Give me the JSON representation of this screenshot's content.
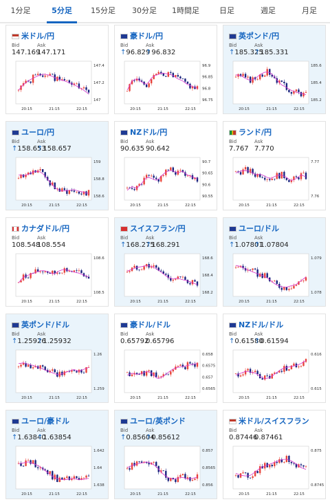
{
  "tabs": [
    {
      "label": "1分足",
      "active": false
    },
    {
      "label": "5分足",
      "active": true
    },
    {
      "label": "15分足",
      "active": false
    },
    {
      "label": "30分足",
      "active": false
    },
    {
      "label": "1時間足",
      "active": false
    },
    {
      "label": "日足",
      "active": false
    },
    {
      "label": "週足",
      "active": false
    },
    {
      "label": "月足",
      "active": false
    }
  ],
  "labels": {
    "bid": "Bid",
    "ask": "Ask"
  },
  "colors": {
    "up": "#e8443a",
    "down": "#1a237e",
    "ma1": "#d633cc",
    "ma2": "#ff88aa",
    "link": "#1565c0",
    "shaded": "#eaf4fb"
  },
  "cards": [
    {
      "name": "米ドル/円",
      "flag": "us",
      "bid": "147.169",
      "ask": "147.171",
      "arrow": "",
      "yticks": [
        "147.4",
        "147.2",
        "147"
      ],
      "xticks": [
        "20:15",
        "21:15",
        "22:15"
      ],
      "shaded": false
    },
    {
      "name": "豪ドル/円",
      "flag": "au",
      "bid": "96.829",
      "ask": "96.832",
      "arrow": "↑",
      "yticks": [
        "96.9",
        "96.85",
        "96.8",
        "96.75"
      ],
      "xticks": [
        "20:15",
        "21:15",
        "22:15"
      ],
      "shaded": false
    },
    {
      "name": "英ポンド/円",
      "flag": "gb",
      "bid": "185.325",
      "ask": "185.331",
      "arrow": "↑",
      "yticks": [
        "185.6",
        "185.4",
        "185.2"
      ],
      "xticks": [
        "20:15",
        "21:15",
        "22:15"
      ],
      "shaded": true
    },
    {
      "name": "ユーロ/円",
      "flag": "eu",
      "bid": "158.653",
      "ask": "158.657",
      "arrow": "↑",
      "yticks": [
        "159",
        "158.8",
        "158.6"
      ],
      "xticks": [
        "20:15",
        "21:15",
        "22:15"
      ],
      "shaded": true
    },
    {
      "name": "NZドル/円",
      "flag": "nz",
      "bid": "90.635",
      "ask": "90.642",
      "arrow": "",
      "yticks": [
        "90.7",
        "90.65",
        "90.6",
        "90.55"
      ],
      "xticks": [
        "20:15",
        "21:15",
        "22:15"
      ],
      "shaded": false
    },
    {
      "name": "ランド/円",
      "flag": "za",
      "bid": "7.767",
      "ask": "7.770",
      "arrow": "",
      "yticks": [
        "7.77",
        "7.76"
      ],
      "xticks": [
        "20:15",
        "21:15",
        "22:15"
      ],
      "shaded": false
    },
    {
      "name": "カナダドル/円",
      "flag": "ca",
      "bid": "108.548",
      "ask": "108.554",
      "arrow": "",
      "yticks": [
        "108.6",
        "108.5"
      ],
      "xticks": [
        "20:15",
        "21:15",
        "22:15"
      ],
      "shaded": false
    },
    {
      "name": "スイスフラン/円",
      "flag": "ch",
      "bid": "168.275",
      "ask": "168.291",
      "arrow": "↑",
      "yticks": [
        "168.6",
        "168.4",
        "168.2"
      ],
      "xticks": [
        "20:15",
        "21:15",
        "22:15"
      ],
      "shaded": true
    },
    {
      "name": "ユーロ/ドル",
      "flag": "eu",
      "bid": "1.07801",
      "ask": "1.07804",
      "arrow": "↑",
      "yticks": [
        "1.079",
        "1.078"
      ],
      "xticks": [
        "20:15",
        "21:15",
        "22:15"
      ],
      "shaded": true
    },
    {
      "name": "英ポンド/ドル",
      "flag": "gb",
      "bid": "1.25926",
      "ask": "1.25932",
      "arrow": "↑",
      "yticks": [
        "1.26",
        "1.259"
      ],
      "xticks": [
        "20:15",
        "21:15",
        "22:15"
      ],
      "shaded": true
    },
    {
      "name": "豪ドル/ドル",
      "flag": "au",
      "bid": "0.65792",
      "ask": "0.65796",
      "arrow": "",
      "yticks": [
        "0.658",
        "0.6575",
        "0.657",
        "0.6565"
      ],
      "xticks": [
        "20:15",
        "21:15",
        "22:15"
      ],
      "shaded": false
    },
    {
      "name": "NZドル/ドル",
      "flag": "nz",
      "bid": "0.61580",
      "ask": "0.61594",
      "arrow": "↑",
      "yticks": [
        "0.616",
        "0.615"
      ],
      "xticks": [
        "20:15",
        "21:15",
        "22:15"
      ],
      "shaded": false
    },
    {
      "name": "ユーロ/豪ドル",
      "flag": "eu",
      "bid": "1.63840",
      "ask": "1.63854",
      "arrow": "↑",
      "yticks": [
        "1.642",
        "1.64",
        "1.638"
      ],
      "xticks": [
        "20:15",
        "21:15",
        "22:15"
      ],
      "shaded": true
    },
    {
      "name": "ユーロ/英ポンド",
      "flag": "eu",
      "bid": "0.85604",
      "ask": "0.85612",
      "arrow": "↑",
      "yticks": [
        "0.857",
        "0.8565",
        "0.856"
      ],
      "xticks": [
        "20:15",
        "21:15",
        "22:15"
      ],
      "shaded": true
    },
    {
      "name": "米ドル/スイスフラン",
      "flag": "us",
      "bid": "0.87446",
      "ask": "0.87461",
      "arrow": "",
      "yticks": [
        "0.875",
        "0.8745"
      ],
      "xticks": [
        "20:15",
        "21:15",
        "22:15"
      ],
      "shaded": false
    }
  ],
  "chart_data": [
    {
      "type": "candlestick",
      "pair": "米ドル/円",
      "trend": [
        0.3,
        0.45,
        0.55,
        0.62,
        0.68,
        0.72,
        0.7,
        0.64,
        0.58,
        0.55,
        0.5,
        0.45,
        0.38,
        0.3,
        0.2
      ],
      "ylim": [
        147.0,
        147.4
      ]
    },
    {
      "type": "candlestick",
      "pair": "豪ドル/円",
      "trend": [
        0.3,
        0.55,
        0.6,
        0.5,
        0.45,
        0.65,
        0.7,
        0.75,
        0.72,
        0.7,
        0.6,
        0.55,
        0.45,
        0.4,
        0.35
      ],
      "ylim": [
        96.75,
        96.9
      ]
    },
    {
      "type": "candlestick",
      "pair": "英ポンド/円",
      "trend": [
        0.7,
        0.68,
        0.6,
        0.55,
        0.62,
        0.72,
        0.78,
        0.75,
        0.6,
        0.45,
        0.38,
        0.3,
        0.25,
        0.22,
        0.18
      ],
      "ylim": [
        185.2,
        185.6
      ]
    },
    {
      "type": "candlestick",
      "pair": "ユーロ/円",
      "trend": [
        0.6,
        0.58,
        0.62,
        0.68,
        0.7,
        0.62,
        0.45,
        0.3,
        0.2,
        0.18,
        0.2,
        0.22,
        0.18,
        0.15,
        0.12
      ],
      "ylim": [
        158.6,
        159.0
      ]
    },
    {
      "type": "candlestick",
      "pair": "NZドル/円",
      "trend": [
        0.2,
        0.3,
        0.25,
        0.4,
        0.55,
        0.5,
        0.45,
        0.6,
        0.7,
        0.72,
        0.65,
        0.7,
        0.6,
        0.55,
        0.5
      ],
      "ylim": [
        90.55,
        90.7
      ]
    },
    {
      "type": "candlestick",
      "pair": "ランド/円",
      "trend": [
        0.65,
        0.7,
        0.72,
        0.68,
        0.6,
        0.62,
        0.55,
        0.5,
        0.58,
        0.6,
        0.55,
        0.45,
        0.5,
        0.6,
        0.55
      ],
      "ylim": [
        7.755,
        7.775
      ]
    },
    {
      "type": "candlestick",
      "pair": "カナダドル/円",
      "trend": [
        0.3,
        0.45,
        0.5,
        0.55,
        0.6,
        0.62,
        0.58,
        0.52,
        0.6,
        0.65,
        0.62,
        0.58,
        0.55,
        0.5,
        0.45
      ],
      "ylim": [
        108.45,
        108.62
      ]
    },
    {
      "type": "candlestick",
      "pair": "スイスフラン/円",
      "trend": [
        0.6,
        0.65,
        0.7,
        0.72,
        0.75,
        0.72,
        0.65,
        0.55,
        0.45,
        0.4,
        0.42,
        0.38,
        0.35,
        0.3,
        0.25
      ],
      "ylim": [
        168.15,
        168.65
      ]
    },
    {
      "type": "candlestick",
      "pair": "ユーロ/ドル",
      "trend": [
        0.75,
        0.72,
        0.65,
        0.6,
        0.55,
        0.5,
        0.45,
        0.35,
        0.25,
        0.2,
        0.18,
        0.22,
        0.25,
        0.35,
        0.45
      ],
      "ylim": [
        1.0772,
        1.0795
      ]
    },
    {
      "type": "candlestick",
      "pair": "英ポンド/ドル",
      "trend": [
        0.7,
        0.72,
        0.68,
        0.65,
        0.6,
        0.55,
        0.5,
        0.45,
        0.4,
        0.45,
        0.5,
        0.55,
        0.5,
        0.55,
        0.6
      ],
      "ylim": [
        1.2585,
        1.2605
      ]
    },
    {
      "type": "candlestick",
      "pair": "豪ドル/ドル",
      "trend": [
        0.4,
        0.45,
        0.42,
        0.45,
        0.5,
        0.45,
        0.3,
        0.35,
        0.45,
        0.55,
        0.6,
        0.62,
        0.65,
        0.68,
        0.7
      ],
      "ylim": [
        0.6562,
        0.6583
      ]
    },
    {
      "type": "candlestick",
      "pair": "NZドル/ドル",
      "trend": [
        0.4,
        0.45,
        0.5,
        0.48,
        0.45,
        0.35,
        0.3,
        0.35,
        0.45,
        0.55,
        0.6,
        0.62,
        0.65,
        0.7,
        0.78
      ],
      "ylim": [
        0.6143,
        0.6163
      ]
    },
    {
      "type": "candlestick",
      "pair": "ユーロ/豪ドル",
      "trend": [
        0.6,
        0.62,
        0.65,
        0.6,
        0.55,
        0.45,
        0.35,
        0.25,
        0.2,
        0.18,
        0.2,
        0.22,
        0.18,
        0.2,
        0.22
      ],
      "ylim": [
        1.6375,
        1.6425
      ]
    },
    {
      "type": "candlestick",
      "pair": "ユーロ/英ポンド",
      "trend": [
        0.5,
        0.55,
        0.6,
        0.62,
        0.65,
        0.6,
        0.5,
        0.35,
        0.25,
        0.2,
        0.22,
        0.25,
        0.2,
        0.22,
        0.25
      ],
      "ylim": [
        0.8558,
        0.8572
      ]
    },
    {
      "type": "candlestick",
      "pair": "米ドル/スイスフラン",
      "trend": [
        0.35,
        0.3,
        0.28,
        0.3,
        0.4,
        0.5,
        0.55,
        0.6,
        0.65,
        0.7,
        0.72,
        0.68,
        0.6,
        0.5,
        0.45
      ],
      "ylim": [
        0.874,
        0.8756
      ]
    }
  ]
}
